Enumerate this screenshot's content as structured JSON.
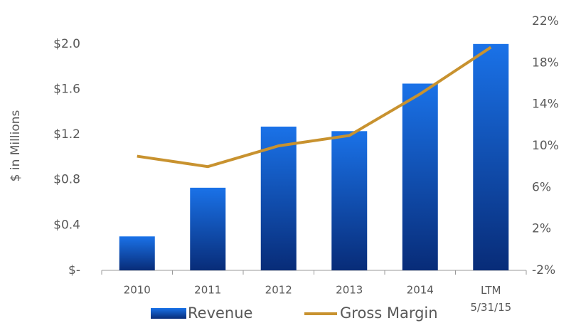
{
  "chart_data": {
    "type": "bar-line",
    "y_label": "$ in Millions",
    "categories": [
      "2010",
      "2011",
      "2012",
      "2013",
      "2014",
      "LTM\n5/31/15"
    ],
    "series": [
      {
        "name": "Revenue",
        "type": "bar",
        "color": "#1466dc",
        "values": [
          0.3,
          0.73,
          1.27,
          1.23,
          1.65,
          2.0
        ]
      },
      {
        "name": "Gross Margin",
        "type": "line",
        "axis": "y2",
        "color": "#c8922f",
        "values": [
          9,
          8,
          10,
          11,
          15,
          19.5
        ]
      }
    ],
    "ylim": [
      0,
      2.2
    ],
    "yticks": [
      {
        "value": 0,
        "label": "$-"
      },
      {
        "value": 0.4,
        "label": "$0.4"
      },
      {
        "value": 0.8,
        "label": "$0.8"
      },
      {
        "value": 1.2,
        "label": "$1.2"
      },
      {
        "value": 1.6,
        "label": "$1.6"
      },
      {
        "value": 2.0,
        "label": "$2.0"
      }
    ],
    "y2lim": [
      -2,
      22
    ],
    "y2ticks": [
      {
        "value": -2,
        "label": "-2%"
      },
      {
        "value": 2,
        "label": "2%"
      },
      {
        "value": 6,
        "label": "6%"
      },
      {
        "value": 10,
        "label": "10%"
      },
      {
        "value": 14,
        "label": "14%"
      },
      {
        "value": 18,
        "label": "18%"
      },
      {
        "value": 22,
        "label": "22%"
      }
    ],
    "legend": "bottom"
  }
}
